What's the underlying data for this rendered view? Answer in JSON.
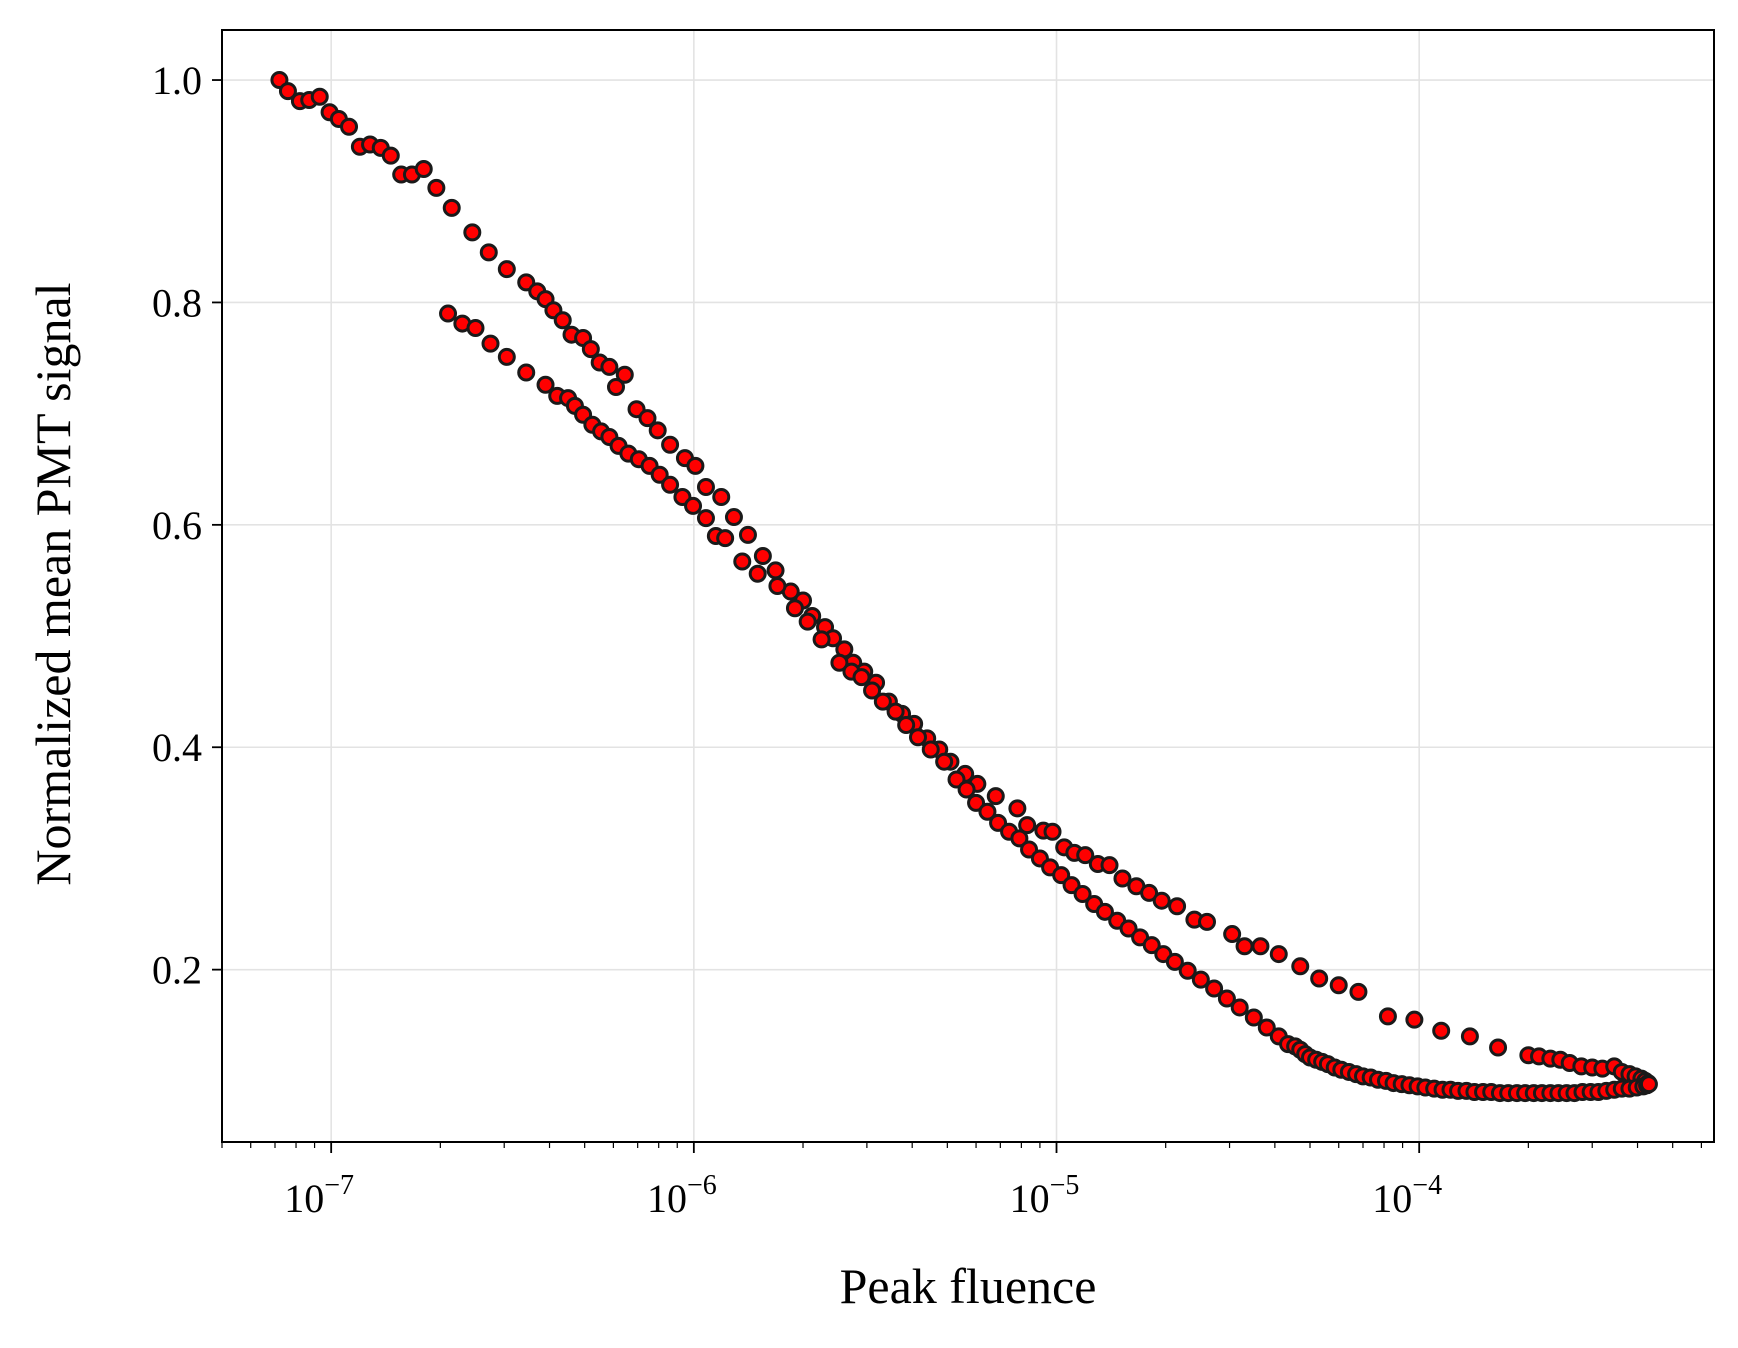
{
  "chart_data": {
    "type": "scatter",
    "title": "",
    "xlabel": "Peak fluence",
    "ylabel": "Normalized mean PMT signal",
    "x_scale": "log",
    "xlim": [
      5e-08,
      0.00065
    ],
    "ylim": [
      0.045,
      1.045
    ],
    "x_ticks": [
      {
        "value": 1e-07,
        "base": "10",
        "exp": "−7"
      },
      {
        "value": 1e-06,
        "base": "10",
        "exp": "−6"
      },
      {
        "value": 1e-05,
        "base": "10",
        "exp": "−5"
      },
      {
        "value": 0.0001,
        "base": "10",
        "exp": "−4"
      }
    ],
    "y_ticks": [
      {
        "value": 0.2,
        "label": "0.2"
      },
      {
        "value": 0.4,
        "label": "0.4"
      },
      {
        "value": 0.6,
        "label": "0.6"
      },
      {
        "value": 0.8,
        "label": "0.8"
      },
      {
        "value": 1.0,
        "label": "1.0"
      }
    ],
    "grid": true,
    "legend": "none",
    "colors": {
      "marker_fill": "#ff0000",
      "marker_edge": "#1a1a1a",
      "grid": "#e3e3e3",
      "axes": "#000000"
    },
    "series": [
      {
        "points": [
          [
            7.2e-08,
            1.0
          ],
          [
            7.6e-08,
            0.99
          ],
          [
            8.2e-08,
            0.981
          ],
          [
            8.7e-08,
            0.982
          ],
          [
            9.3e-08,
            0.985
          ],
          [
            9.9e-08,
            0.971
          ],
          [
            1.05e-07,
            0.965
          ],
          [
            1.12e-07,
            0.958
          ],
          [
            1.2e-07,
            0.94
          ],
          [
            1.28e-07,
            0.942
          ],
          [
            1.37e-07,
            0.939
          ],
          [
            1.46e-07,
            0.932
          ],
          [
            1.56e-07,
            0.915
          ],
          [
            1.67e-07,
            0.915
          ],
          [
            1.8e-07,
            0.92
          ],
          [
            1.95e-07,
            0.903
          ],
          [
            2.15e-07,
            0.885
          ],
          [
            2.45e-07,
            0.863
          ],
          [
            2.72e-07,
            0.845
          ],
          [
            3.05e-07,
            0.83
          ],
          [
            3.45e-07,
            0.818
          ],
          [
            3.7e-07,
            0.81
          ],
          [
            3.9e-07,
            0.803
          ],
          [
            4.1e-07,
            0.793
          ],
          [
            4.35e-07,
            0.784
          ],
          [
            4.6e-07,
            0.771
          ],
          [
            4.95e-07,
            0.768
          ],
          [
            5.2e-07,
            0.758
          ],
          [
            5.5e-07,
            0.746
          ],
          [
            5.85e-07,
            0.742
          ],
          [
            6.1e-07,
            0.724
          ],
          [
            6.45e-07,
            0.735
          ],
          [
            6.95e-07,
            0.704
          ],
          [
            7.45e-07,
            0.696
          ],
          [
            7.95e-07,
            0.685
          ],
          [
            8.6e-07,
            0.672
          ],
          [
            9.45e-07,
            0.66
          ],
          [
            1.01e-06,
            0.653
          ],
          [
            1.08e-06,
            0.634
          ],
          [
            1.19e-06,
            0.625
          ],
          [
            1.29e-06,
            0.607
          ],
          [
            1.41e-06,
            0.591
          ],
          [
            1.55e-06,
            0.572
          ],
          [
            1.68e-06,
            0.559
          ],
          [
            1.85e-06,
            0.54
          ],
          [
            2e-06,
            0.532
          ],
          [
            2.12e-06,
            0.518
          ],
          [
            2.3e-06,
            0.508
          ],
          [
            2.42e-06,
            0.498
          ],
          [
            2.6e-06,
            0.488
          ],
          [
            2.75e-06,
            0.476
          ],
          [
            2.95e-06,
            0.468
          ],
          [
            3.18e-06,
            0.458
          ],
          [
            3.45e-06,
            0.441
          ],
          [
            3.75e-06,
            0.43
          ],
          [
            4.05e-06,
            0.421
          ],
          [
            4.4e-06,
            0.408
          ],
          [
            4.75e-06,
            0.398
          ],
          [
            5.1e-06,
            0.387
          ],
          [
            5.6e-06,
            0.376
          ],
          [
            6.05e-06,
            0.367
          ],
          [
            6.8e-06,
            0.356
          ],
          [
            7.8e-06,
            0.345
          ],
          [
            8.3e-06,
            0.33
          ],
          [
            9.2e-06,
            0.325
          ],
          [
            9.75e-06,
            0.324
          ],
          [
            1.05e-05,
            0.31
          ],
          [
            1.12e-05,
            0.305
          ],
          [
            1.2e-05,
            0.303
          ],
          [
            1.3e-05,
            0.295
          ],
          [
            1.4e-05,
            0.294
          ],
          [
            1.52e-05,
            0.282
          ],
          [
            1.66e-05,
            0.275
          ],
          [
            1.8e-05,
            0.269
          ],
          [
            1.95e-05,
            0.262
          ],
          [
            2.15e-05,
            0.257
          ],
          [
            2.4e-05,
            0.245
          ],
          [
            2.6e-05,
            0.243
          ],
          [
            3.05e-05,
            0.232
          ],
          [
            3.3e-05,
            0.221
          ],
          [
            3.65e-05,
            0.221
          ],
          [
            4.1e-05,
            0.214
          ],
          [
            4.7e-05,
            0.203
          ],
          [
            5.3e-05,
            0.192
          ],
          [
            6e-05,
            0.186
          ],
          [
            6.8e-05,
            0.18
          ],
          [
            8.2e-05,
            0.158
          ],
          [
            9.7e-05,
            0.155
          ],
          [
            0.000115,
            0.145
          ],
          [
            0.000138,
            0.14
          ],
          [
            0.000165,
            0.13
          ],
          [
            0.0002,
            0.123
          ],
          [
            0.000214,
            0.122
          ],
          [
            0.00023,
            0.12
          ],
          [
            0.000245,
            0.119
          ],
          [
            0.00026,
            0.116
          ],
          [
            0.00028,
            0.113
          ],
          [
            0.0003,
            0.112
          ],
          [
            0.00032,
            0.111
          ],
          [
            0.000345,
            0.113
          ],
          [
            0.000362,
            0.108
          ],
          [
            0.00038,
            0.106
          ],
          [
            0.000395,
            0.104
          ],
          [
            0.00041,
            0.102
          ],
          [
            0.00042,
            0.1
          ],
          [
            0.000428,
            0.098
          ],
          [
            2.1e-07,
            0.79
          ],
          [
            2.3e-07,
            0.781
          ],
          [
            2.5e-07,
            0.777
          ],
          [
            2.75e-07,
            0.763
          ],
          [
            3.05e-07,
            0.751
          ],
          [
            3.45e-07,
            0.737
          ],
          [
            3.9e-07,
            0.726
          ],
          [
            4.2e-07,
            0.716
          ],
          [
            4.5e-07,
            0.714
          ],
          [
            4.7e-07,
            0.707
          ],
          [
            4.95e-07,
            0.699
          ],
          [
            5.25e-07,
            0.69
          ],
          [
            5.55e-07,
            0.684
          ],
          [
            5.85e-07,
            0.679
          ],
          [
            6.2e-07,
            0.671
          ],
          [
            6.6e-07,
            0.664
          ],
          [
            7.05e-07,
            0.659
          ],
          [
            7.55e-07,
            0.653
          ],
          [
            8.05e-07,
            0.645
          ],
          [
            8.6e-07,
            0.636
          ],
          [
            9.3e-07,
            0.625
          ],
          [
            9.95e-07,
            0.617
          ],
          [
            1.08e-06,
            0.606
          ],
          [
            1.15e-06,
            0.59
          ],
          [
            1.22e-06,
            0.588
          ],
          [
            1.36e-06,
            0.567
          ],
          [
            1.5e-06,
            0.556
          ],
          [
            1.7e-06,
            0.545
          ],
          [
            1.9e-06,
            0.525
          ],
          [
            2.06e-06,
            0.513
          ],
          [
            2.25e-06,
            0.497
          ],
          [
            2.52e-06,
            0.476
          ],
          [
            2.72e-06,
            0.468
          ],
          [
            2.9e-06,
            0.463
          ],
          [
            3.1e-06,
            0.451
          ],
          [
            3.32e-06,
            0.441
          ],
          [
            3.6e-06,
            0.432
          ],
          [
            3.85e-06,
            0.42
          ],
          [
            4.15e-06,
            0.409
          ],
          [
            4.5e-06,
            0.398
          ],
          [
            4.9e-06,
            0.387
          ],
          [
            5.3e-06,
            0.371
          ],
          [
            5.65e-06,
            0.362
          ],
          [
            6e-06,
            0.35
          ],
          [
            6.45e-06,
            0.342
          ],
          [
            6.9e-06,
            0.332
          ],
          [
            7.4e-06,
            0.324
          ],
          [
            7.9e-06,
            0.318
          ],
          [
            8.4e-06,
            0.308
          ],
          [
            9e-06,
            0.3
          ],
          [
            9.6e-06,
            0.292
          ],
          [
            1.03e-05,
            0.285
          ],
          [
            1.1e-05,
            0.276
          ],
          [
            1.18e-05,
            0.268
          ],
          [
            1.27e-05,
            0.259
          ],
          [
            1.36e-05,
            0.252
          ],
          [
            1.47e-05,
            0.244
          ],
          [
            1.58e-05,
            0.237
          ],
          [
            1.7e-05,
            0.229
          ],
          [
            1.83e-05,
            0.222
          ],
          [
            1.97e-05,
            0.214
          ],
          [
            2.12e-05,
            0.207
          ],
          [
            2.3e-05,
            0.199
          ],
          [
            2.5e-05,
            0.191
          ],
          [
            2.72e-05,
            0.183
          ],
          [
            2.95e-05,
            0.174
          ],
          [
            3.2e-05,
            0.166
          ],
          [
            3.5e-05,
            0.157
          ],
          [
            3.8e-05,
            0.148
          ],
          [
            4.1e-05,
            0.14
          ],
          [
            4.35e-05,
            0.133
          ],
          [
            4.55e-05,
            0.131
          ],
          [
            4.7e-05,
            0.128
          ],
          [
            4.85e-05,
            0.124
          ],
          [
            5e-05,
            0.121
          ],
          [
            5.2e-05,
            0.119
          ],
          [
            5.4e-05,
            0.117
          ],
          [
            5.6e-05,
            0.115
          ],
          [
            5.85e-05,
            0.112
          ],
          [
            6.1e-05,
            0.11
          ],
          [
            6.4e-05,
            0.108
          ],
          [
            6.7e-05,
            0.106
          ],
          [
            7e-05,
            0.104
          ],
          [
            7.35e-05,
            0.103
          ],
          [
            7.7e-05,
            0.101
          ],
          [
            8.1e-05,
            0.1
          ],
          [
            8.5e-05,
            0.098
          ],
          [
            8.95e-05,
            0.097
          ],
          [
            9.4e-05,
            0.096
          ],
          [
            9.9e-05,
            0.095
          ],
          [
            0.000104,
            0.094
          ],
          [
            0.00011,
            0.093
          ],
          [
            0.000116,
            0.092
          ],
          [
            0.000122,
            0.092
          ],
          [
            0.000128,
            0.091
          ],
          [
            0.000135,
            0.091
          ],
          [
            0.000142,
            0.09
          ],
          [
            0.00015,
            0.09
          ],
          [
            0.000158,
            0.09
          ],
          [
            0.000167,
            0.089
          ],
          [
            0.000176,
            0.089
          ],
          [
            0.000186,
            0.089
          ],
          [
            0.000196,
            0.089
          ],
          [
            0.000207,
            0.089
          ],
          [
            0.000218,
            0.089
          ],
          [
            0.00023,
            0.089
          ],
          [
            0.000242,
            0.089
          ],
          [
            0.000255,
            0.089
          ],
          [
            0.000268,
            0.089
          ],
          [
            0.000282,
            0.09
          ],
          [
            0.000297,
            0.09
          ],
          [
            0.000312,
            0.09
          ],
          [
            0.000328,
            0.091
          ],
          [
            0.000345,
            0.092
          ],
          [
            0.000362,
            0.093
          ],
          [
            0.00038,
            0.093
          ],
          [
            0.000398,
            0.094
          ],
          [
            0.000415,
            0.095
          ],
          [
            0.000425,
            0.096
          ],
          [
            0.00043,
            0.097
          ]
        ]
      }
    ]
  }
}
